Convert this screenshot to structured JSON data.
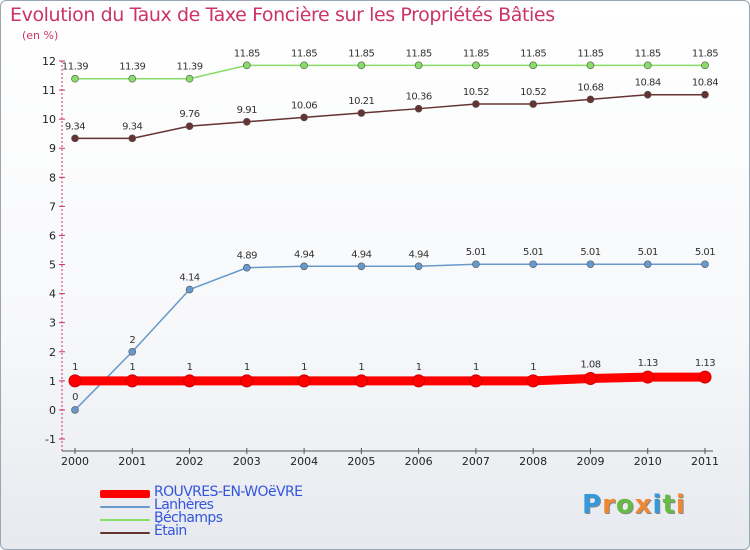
{
  "header": {
    "title": "Evolution du Taux de Taxe Foncière sur les Propriétés Bâties",
    "unit_label": "(en %)"
  },
  "logo": {
    "text": "Proxiti"
  },
  "chart_data": {
    "type": "line",
    "title": "Evolution du Taux de Taxe Foncière sur les Propriétés Bâties",
    "ylabel": "(en %)",
    "xlabel": "",
    "x": [
      "2000",
      "2001",
      "2002",
      "2003",
      "2004",
      "2005",
      "2006",
      "2007",
      "2008",
      "2009",
      "2010",
      "2011"
    ],
    "ylim": [
      -1,
      12
    ],
    "yticks": [
      "-1",
      "0",
      "1",
      "2",
      "3",
      "4",
      "5",
      "6",
      "7",
      "8",
      "9",
      "10",
      "11",
      "12"
    ],
    "legend_position": "bottom-left",
    "series": [
      {
        "name": "ROUVRES-EN-WOëVRE",
        "color": "#ff0000",
        "values": [
          1,
          1,
          1,
          1,
          1,
          1,
          1,
          1,
          1,
          1.08,
          1.13,
          1.13
        ],
        "labels": [
          "1",
          "1",
          "1",
          "1",
          "1",
          "1",
          "1",
          "1",
          "1",
          "1.08",
          "1.13",
          "1.13"
        ]
      },
      {
        "name": "Lanhères",
        "color": "#6699cc",
        "values": [
          0,
          2,
          4.14,
          4.89,
          4.94,
          4.94,
          4.94,
          5.01,
          5.01,
          5.01,
          5.01,
          5.01
        ],
        "labels": [
          "0",
          "2",
          "4.14",
          "4.89",
          "4.94",
          "4.94",
          "4.94",
          "5.01",
          "5.01",
          "5.01",
          "5.01",
          "5.01"
        ]
      },
      {
        "name": "Béchamps",
        "color": "#88dd66",
        "values": [
          11.39,
          11.39,
          11.39,
          11.85,
          11.85,
          11.85,
          11.85,
          11.85,
          11.85,
          11.85,
          11.85,
          11.85
        ],
        "labels": [
          "11.39",
          "11.39",
          "11.39",
          "11.85",
          "11.85",
          "11.85",
          "11.85",
          "11.85",
          "11.85",
          "11.85",
          "11.85",
          "11.85"
        ]
      },
      {
        "name": "Étain",
        "color": "#663333",
        "values": [
          9.34,
          9.34,
          9.76,
          9.91,
          10.06,
          10.21,
          10.36,
          10.52,
          10.52,
          10.68,
          10.84,
          10.84
        ],
        "labels": [
          "9.34",
          "9.34",
          "9.76",
          "9.91",
          "10.06",
          "10.21",
          "10.36",
          "10.52",
          "10.52",
          "10.68",
          "10.84",
          "10.84"
        ]
      }
    ]
  }
}
